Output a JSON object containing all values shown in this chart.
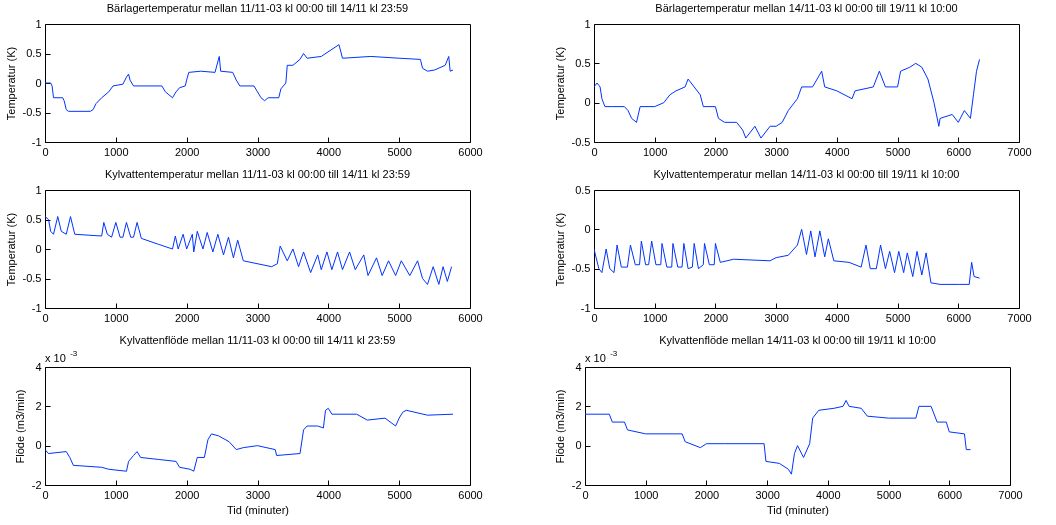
{
  "chart_data": [
    {
      "type": "line",
      "title": "Bärlagertemperatur mellan 11/11-03 kl 00:00 till 14/11 kl 23:59",
      "ylabel": "Temperatur (K)",
      "xlim": [
        0,
        6000
      ],
      "xticks": [
        0,
        1000,
        2000,
        3000,
        4000,
        5000,
        6000
      ],
      "ylim": [
        -1,
        1
      ],
      "yticks": [
        -1,
        -0.5,
        0,
        0.5,
        1
      ],
      "grid": false,
      "x": [
        0,
        80,
        100,
        120,
        250,
        270,
        300,
        330,
        640,
        680,
        720,
        800,
        900,
        960,
        1100,
        1150,
        1180,
        1200,
        1250,
        1650,
        1700,
        1750,
        1800,
        1850,
        1900,
        1980,
        2000,
        2030,
        2200,
        2400,
        2460,
        2480,
        2650,
        2700,
        2750,
        2950,
        3000,
        3050,
        3100,
        3150,
        3300,
        3330,
        3400,
        3420,
        3500,
        3600,
        3650,
        3700,
        3900,
        4150,
        4200,
        4600,
        5000,
        5300,
        5330,
        5400,
        5500,
        5650,
        5700,
        5720,
        5760
      ],
      "series": [
        {
          "color": "#0033ff",
          "values": [
            0,
            0,
            -0.05,
            -0.25,
            -0.25,
            -0.3,
            -0.45,
            -0.48,
            -0.48,
            -0.45,
            -0.35,
            -0.25,
            -0.15,
            -0.05,
            -0.02,
            0.1,
            0.15,
            0.05,
            -0.05,
            -0.05,
            -0.15,
            -0.2,
            -0.25,
            -0.15,
            -0.08,
            -0.05,
            0.05,
            0.18,
            0.2,
            0.18,
            0.45,
            0.2,
            0.18,
            0.05,
            -0.05,
            -0.05,
            -0.15,
            -0.25,
            -0.3,
            -0.25,
            -0.25,
            -0.1,
            0,
            0.3,
            0.3,
            0.4,
            0.5,
            0.42,
            0.45,
            0.65,
            0.42,
            0.45,
            0.42,
            0.4,
            0.25,
            0.2,
            0.22,
            0.3,
            0.45,
            0.2,
            0.22
          ]
        }
      ]
    },
    {
      "type": "line",
      "title": "Bärlagertemperatur mellan 14/11-03 kl 00:00 till 19/11 kl 10:00",
      "ylabel": "Temperatur (K)",
      "xlim": [
        0,
        7000
      ],
      "xticks": [
        0,
        1000,
        2000,
        3000,
        4000,
        5000,
        6000,
        7000
      ],
      "ylim": [
        -0.5,
        1
      ],
      "yticks": [
        -0.5,
        0,
        0.5,
        1
      ],
      "grid": false,
      "x": [
        0,
        50,
        100,
        130,
        180,
        300,
        500,
        560,
        620,
        700,
        760,
        1000,
        1150,
        1250,
        1350,
        1500,
        1550,
        1650,
        1750,
        1800,
        2000,
        2050,
        2150,
        2350,
        2450,
        2500,
        2650,
        2750,
        2900,
        3000,
        3100,
        3200,
        3350,
        3420,
        3600,
        3750,
        3800,
        4000,
        4250,
        4300,
        4600,
        4700,
        4800,
        5000,
        5050,
        5200,
        5300,
        5400,
        5500,
        5600,
        5680,
        5700,
        5900,
        6000,
        6100,
        6200,
        6250,
        6300,
        6350
      ],
      "series": [
        {
          "color": "#0033ff",
          "values": [
            0.2,
            0.25,
            0.2,
            0.05,
            -0.05,
            -0.05,
            -0.05,
            -0.1,
            -0.2,
            -0.25,
            -0.05,
            -0.05,
            0,
            0.1,
            0.15,
            0.2,
            0.3,
            0.2,
            0.1,
            -0.05,
            -0.05,
            -0.2,
            -0.25,
            -0.25,
            -0.35,
            -0.45,
            -0.3,
            -0.45,
            -0.3,
            -0.3,
            -0.25,
            -0.1,
            0.05,
            0.2,
            0.2,
            0.4,
            0.2,
            0.15,
            0.05,
            0.15,
            0.2,
            0.4,
            0.2,
            0.2,
            0.4,
            0.45,
            0.5,
            0.45,
            0.3,
            0,
            -0.3,
            -0.2,
            -0.15,
            -0.25,
            -0.1,
            -0.2,
            0.1,
            0.4,
            0.55
          ]
        }
      ]
    },
    {
      "type": "line",
      "title": "Kylvattentemperatur mellan 11/11-03 kl 00:00 till 14/11 kl 23:59",
      "ylabel": "Temperatur (K)",
      "xlim": [
        0,
        6000
      ],
      "xticks": [
        0,
        1000,
        2000,
        3000,
        4000,
        5000,
        6000
      ],
      "ylim": [
        -1,
        1
      ],
      "yticks": [
        -1,
        -0.5,
        0,
        0.5,
        1
      ],
      "grid": false,
      "x": [
        0,
        50,
        80,
        120,
        180,
        230,
        300,
        360,
        420,
        800,
        830,
        880,
        940,
        1000,
        1060,
        1100,
        1150,
        1210,
        1250,
        1300,
        1360,
        1600,
        1800,
        1840,
        1880,
        1950,
        2000,
        2080,
        2100,
        2150,
        2230,
        2290,
        2370,
        2440,
        2520,
        2590,
        2660,
        2720,
        2800,
        3200,
        3280,
        3320,
        3420,
        3500,
        3580,
        3650,
        3750,
        3850,
        3900,
        3980,
        4050,
        4130,
        4200,
        4300,
        4380,
        4500,
        4560,
        4680,
        4760,
        4850,
        4950,
        5030,
        5150,
        5260,
        5330,
        5400,
        5480,
        5560,
        5620,
        5680,
        5740
      ],
      "series": [
        {
          "color": "#0033ff",
          "values": [
            0.55,
            0.5,
            0.3,
            0.25,
            0.55,
            0.3,
            0.25,
            0.55,
            0.25,
            0.22,
            0.45,
            0.25,
            0.2,
            0.45,
            0.2,
            0.2,
            0.45,
            0.2,
            0.2,
            0.45,
            0.18,
            0.08,
            0,
            0.22,
            0,
            0.25,
            0,
            0.25,
            -0.05,
            0.3,
            0,
            0.28,
            -0.05,
            0.25,
            -0.1,
            0.2,
            -0.15,
            0.15,
            -0.2,
            -0.3,
            -0.25,
            0.05,
            -0.2,
            0,
            -0.3,
            -0.05,
            -0.4,
            -0.1,
            -0.35,
            -0.05,
            -0.35,
            -0.05,
            -0.35,
            -0.05,
            -0.35,
            -0.1,
            -0.45,
            -0.15,
            -0.45,
            -0.2,
            -0.45,
            -0.2,
            -0.45,
            -0.2,
            -0.5,
            -0.6,
            -0.3,
            -0.6,
            -0.3,
            -0.55,
            -0.3
          ]
        }
      ]
    },
    {
      "type": "line",
      "title": "Kylvattentemperatur mellan 14/11-03 kl 00:00 till 19/11 kl 10:00",
      "ylabel": "Temperatur (K)",
      "xlim": [
        0,
        7000
      ],
      "xticks": [
        0,
        1000,
        2000,
        3000,
        4000,
        5000,
        6000,
        7000
      ],
      "ylim": [
        -1,
        0.5
      ],
      "yticks": [
        -1,
        -0.5,
        0,
        0.5
      ],
      "grid": false,
      "x": [
        0,
        80,
        130,
        200,
        260,
        330,
        380,
        450,
        550,
        600,
        680,
        750,
        780,
        850,
        900,
        950,
        1020,
        1100,
        1120,
        1200,
        1280,
        1300,
        1380,
        1450,
        1480,
        1550,
        1620,
        1650,
        1720,
        1800,
        1820,
        1900,
        1980,
        2000,
        2080,
        2300,
        2900,
        3000,
        3200,
        3350,
        3420,
        3500,
        3570,
        3640,
        3720,
        3800,
        3860,
        3950,
        4200,
        4400,
        4480,
        4550,
        4650,
        4720,
        4800,
        4870,
        4950,
        5020,
        5100,
        5160,
        5250,
        5320,
        5400,
        5470,
        5550,
        5700,
        6000,
        6180,
        6220,
        6260,
        6350
      ],
      "series": [
        {
          "color": "#0033ff",
          "values": [
            -0.25,
            -0.5,
            -0.55,
            -0.25,
            -0.5,
            -0.55,
            -0.2,
            -0.48,
            -0.48,
            -0.2,
            -0.45,
            -0.45,
            -0.15,
            -0.45,
            -0.45,
            -0.15,
            -0.45,
            -0.45,
            -0.18,
            -0.48,
            -0.48,
            -0.18,
            -0.48,
            -0.48,
            -0.18,
            -0.5,
            -0.48,
            -0.18,
            -0.5,
            -0.45,
            -0.18,
            -0.45,
            -0.45,
            -0.18,
            -0.42,
            -0.38,
            -0.4,
            -0.36,
            -0.33,
            -0.2,
            0,
            -0.32,
            -0.02,
            -0.35,
            -0.02,
            -0.35,
            -0.12,
            -0.4,
            -0.42,
            -0.48,
            -0.2,
            -0.5,
            -0.5,
            -0.2,
            -0.5,
            -0.28,
            -0.55,
            -0.28,
            -0.55,
            -0.3,
            -0.6,
            -0.28,
            -0.58,
            -0.3,
            -0.68,
            -0.7,
            -0.7,
            -0.7,
            -0.42,
            -0.6,
            -0.62
          ]
        }
      ]
    },
    {
      "type": "line",
      "title": "Kylvattenflöde mellan 11/11-03 kl 00:00 till 14/11 kl 23:59",
      "xlabel": "Tid (minuter)",
      "ylabel": "Flöde (m3/min)",
      "annotations": [
        "x 10$^{-3}$"
      ],
      "xlim": [
        0,
        6000
      ],
      "xticks": [
        0,
        1000,
        2000,
        3000,
        4000,
        5000,
        6000
      ],
      "ylim": [
        -2,
        4
      ],
      "yticks": [
        -2,
        0,
        2,
        4
      ],
      "grid": false,
      "x": [
        0,
        50,
        300,
        350,
        400,
        800,
        900,
        1150,
        1180,
        1250,
        1300,
        1350,
        1600,
        1850,
        1900,
        2050,
        2100,
        2150,
        2250,
        2300,
        2350,
        2450,
        2600,
        2700,
        2800,
        3000,
        3250,
        3270,
        3600,
        3650,
        3700,
        3850,
        3930,
        3960,
        4000,
        4050,
        4400,
        4550,
        4800,
        4950,
        5000,
        5050,
        5100,
        5400,
        5760
      ],
      "series": [
        {
          "color": "#0033ff",
          "values": [
            -0.2,
            -0.4,
            -0.3,
            -0.6,
            -1,
            -1.1,
            -1.2,
            -1.3,
            -0.8,
            -0.5,
            -0.3,
            -0.6,
            -0.7,
            -0.8,
            -1.1,
            -1.2,
            -1.3,
            -0.6,
            -0.6,
            0.3,
            0.6,
            0.5,
            0.2,
            -0.2,
            -0.1,
            0,
            -0.2,
            -0.5,
            -0.4,
            0.8,
            1,
            1,
            0.9,
            1.8,
            1.9,
            1.6,
            1.6,
            1.3,
            1.4,
            1,
            1.4,
            1.7,
            1.8,
            1.55,
            1.6
          ]
        }
      ]
    },
    {
      "type": "line",
      "title": "Kylvattenflöde mellan 14/11-03 kl 00:00 till 19/11 kl 10:00",
      "xlabel": "Tid (minuter)",
      "ylabel": "Flöde (m3/min)",
      "annotations": [
        "x 10$^{-3}$"
      ],
      "xlim": [
        0,
        7000
      ],
      "xticks": [
        0,
        1000,
        2000,
        3000,
        4000,
        5000,
        6000,
        7000
      ],
      "ylim": [
        -2,
        4
      ],
      "yticks": [
        -2,
        0,
        2,
        4
      ],
      "grid": false,
      "x": [
        0,
        400,
        450,
        650,
        700,
        1000,
        1500,
        1600,
        1650,
        1900,
        2000,
        2300,
        2900,
        2950,
        2980,
        3200,
        3350,
        3400,
        3450,
        3500,
        3600,
        3700,
        3750,
        3850,
        4100,
        4250,
        4300,
        4350,
        4550,
        4650,
        5000,
        5450,
        5500,
        5700,
        5800,
        5950,
        6000,
        6250,
        6280,
        6350
      ],
      "series": [
        {
          "color": "#0033ff",
          "values": [
            1.6,
            1.6,
            1.2,
            1.2,
            0.8,
            0.6,
            0.6,
            0.6,
            0.2,
            -0.1,
            0.1,
            0.1,
            0.1,
            0.1,
            -0.8,
            -0.9,
            -1.2,
            -1.45,
            -0.4,
            0,
            -0.6,
            0.1,
            1.4,
            1.8,
            1.9,
            2,
            2.3,
            2,
            1.9,
            1.5,
            1.4,
            1.4,
            2,
            2,
            1.2,
            1.2,
            0.7,
            0.6,
            -0.2,
            -0.2
          ]
        }
      ]
    }
  ]
}
